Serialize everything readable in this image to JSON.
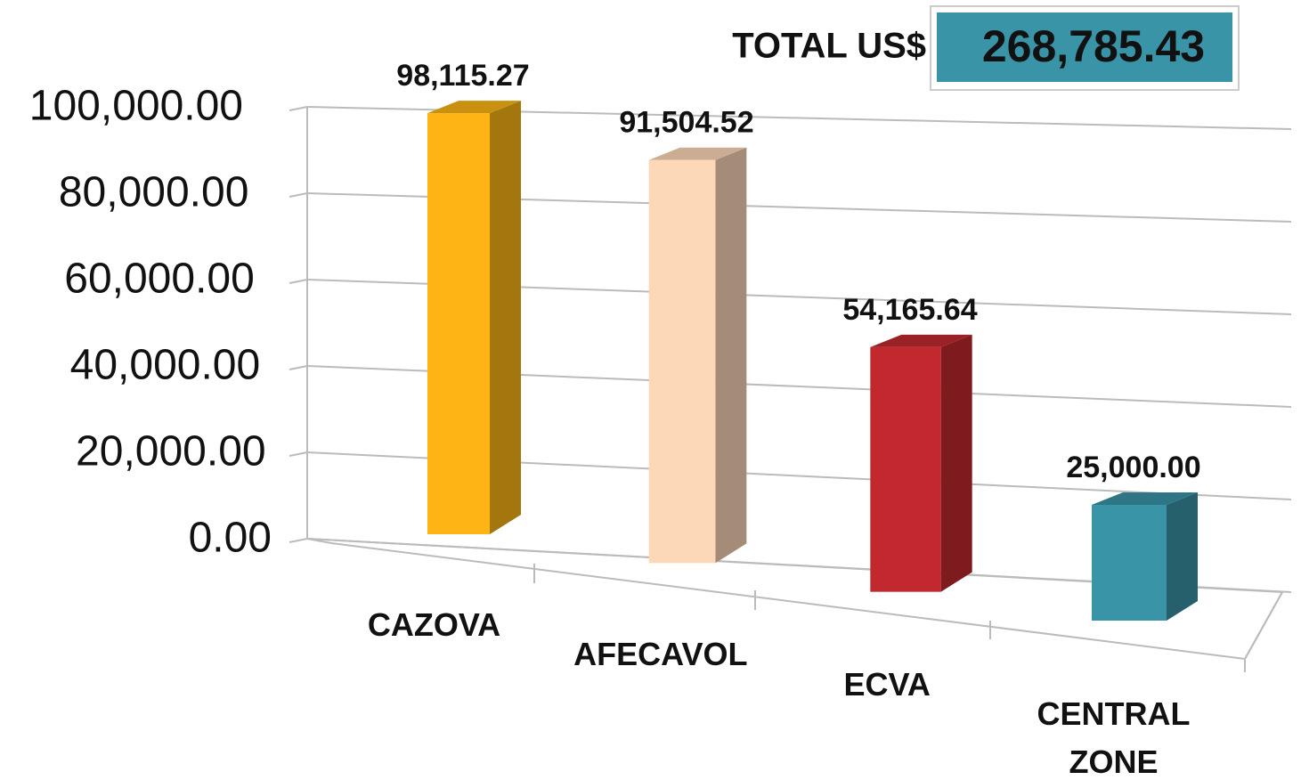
{
  "chart_data": {
    "type": "bar",
    "categories": [
      "CAZOVA",
      "AFECAVOL",
      "ECVA",
      "CENTRAL ZONE"
    ],
    "values": [
      98115.27,
      91504.52,
      54165.64,
      25000.0
    ],
    "value_labels": [
      "98,115.27",
      "91,504.52",
      "54,165.64",
      "25,000.00"
    ],
    "colors": [
      "#fdb515",
      "#fcd8b8",
      "#c1292e",
      "#3a94a8"
    ],
    "ylim": [
      0,
      100000
    ],
    "yticks": [
      {
        "value": 0,
        "label": "0.00"
      },
      {
        "value": 20000,
        "label": "20,000.00"
      },
      {
        "value": 40000,
        "label": "40,000.00"
      },
      {
        "value": 60000,
        "label": "60,000.00"
      },
      {
        "value": 80000,
        "label": "80,000.00"
      },
      {
        "value": 100000,
        "label": "100,000.00"
      }
    ],
    "grid": true,
    "total": {
      "label": "TOTAL US$",
      "value": 268785.43,
      "value_label": "268,785.43"
    }
  }
}
